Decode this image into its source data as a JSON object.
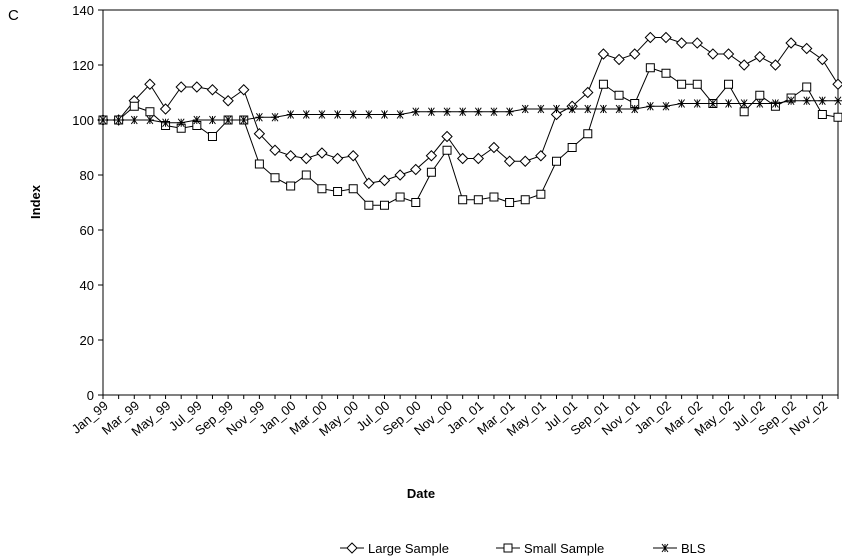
{
  "chart_data": {
    "type": "line",
    "panel_label": "C",
    "x_label": "Date",
    "y_label": "Index",
    "categories": [
      "Jan_99",
      null,
      "Mar_99",
      null,
      "May_99",
      null,
      "Jul_99",
      null,
      "Sep_99",
      null,
      "Nov_99",
      null,
      "Jan_00",
      null,
      "Mar_00",
      null,
      "May_00",
      null,
      "Jul_00",
      null,
      "Sep_00",
      null,
      "Nov_00",
      null,
      "Jan_01",
      null,
      "Mar_01",
      null,
      "May_01",
      null,
      "Jul_01",
      null,
      "Sep_01",
      null,
      "Nov_01",
      null,
      "Jan_02",
      null,
      "Mar_02",
      null,
      "May_02",
      null,
      "Jul_02",
      null,
      "Sep_02",
      null,
      "Nov_02",
      null
    ],
    "series": [
      {
        "name": "Large Sample",
        "color": "#000000",
        "marker": "diamond",
        "values": [
          100,
          100,
          107,
          113,
          104,
          112,
          112,
          111,
          107,
          111,
          95,
          89,
          87,
          86,
          88,
          86,
          87,
          77,
          78,
          80,
          82,
          87,
          94,
          86,
          86,
          90,
          85,
          85,
          87,
          102,
          105,
          110,
          124,
          122,
          124,
          130,
          130,
          128,
          128,
          124,
          124,
          120,
          123,
          120,
          128,
          126,
          122,
          113
        ]
      },
      {
        "name": "Small Sample",
        "color": "#000000",
        "marker": "square",
        "values": [
          100,
          100,
          105,
          103,
          98,
          97,
          98,
          94,
          100,
          100,
          84,
          79,
          76,
          80,
          75,
          74,
          75,
          69,
          69,
          72,
          70,
          81,
          89,
          71,
          71,
          72,
          70,
          71,
          73,
          85,
          90,
          95,
          113,
          109,
          106,
          119,
          117,
          113,
          113,
          106,
          113,
          103,
          109,
          105,
          108,
          112,
          102,
          101
        ]
      },
      {
        "name": "BLS",
        "color": "#000000",
        "marker": "star",
        "values": [
          100,
          100,
          100,
          100,
          99,
          99,
          100,
          100,
          100,
          100,
          101,
          101,
          102,
          102,
          102,
          102,
          102,
          102,
          102,
          102,
          103,
          103,
          103,
          103,
          103,
          103,
          103,
          104,
          104,
          104,
          104,
          104,
          104,
          104,
          104,
          105,
          105,
          106,
          106,
          106,
          106,
          106,
          106,
          106,
          107,
          107,
          107,
          107
        ]
      }
    ],
    "ylim": [
      0,
      140
    ],
    "yticks": [
      0,
      20,
      40,
      60,
      80,
      100,
      120,
      140
    ],
    "grid": false
  }
}
